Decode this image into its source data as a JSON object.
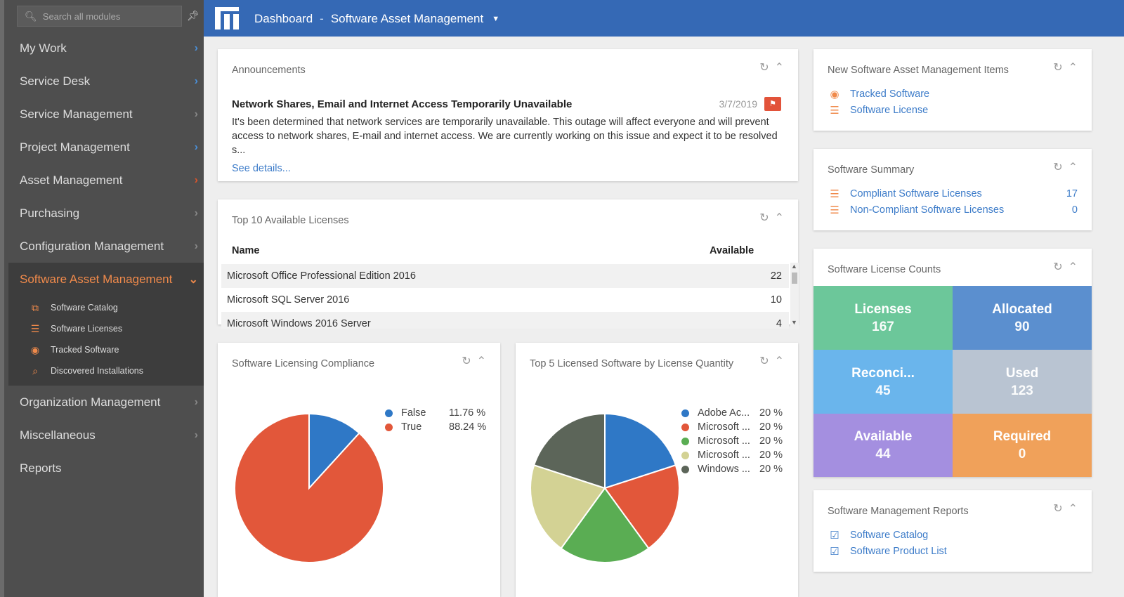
{
  "sidebar": {
    "search_placeholder": "Search all modules",
    "nav": [
      {
        "label": "My Work",
        "chev": "blue"
      },
      {
        "label": "Service Desk",
        "chev": "blue"
      },
      {
        "label": "Service Management",
        "chev": "grey"
      },
      {
        "label": "Project Management",
        "chev": "blue"
      },
      {
        "label": "Asset Management",
        "chev": "red"
      },
      {
        "label": "Purchasing",
        "chev": "grey"
      },
      {
        "label": "Configuration Management",
        "chev": "grey"
      }
    ],
    "active": {
      "label": "Software Asset Management"
    },
    "sub_items": [
      {
        "label": "Software Catalog",
        "icon": "catalog-icon"
      },
      {
        "label": "Software Licenses",
        "icon": "license-icon"
      },
      {
        "label": "Tracked Software",
        "icon": "eye-icon"
      },
      {
        "label": "Discovered Installations",
        "icon": "magnifier-icon"
      }
    ],
    "nav_bottom": [
      {
        "label": "Organization Management",
        "chev": "grey"
      },
      {
        "label": "Miscellaneous",
        "chev": "grey"
      },
      {
        "label": "Reports",
        "chev": "none"
      }
    ]
  },
  "topbar": {
    "dashboard": "Dashboard",
    "separator": "-",
    "module": "Software Asset Management",
    "color": "#3569b5"
  },
  "announcements": {
    "title": "Announcements",
    "headline": "Network Shares, Email and Internet Access Temporarily Unavailable",
    "date": "3/7/2019",
    "body": "It's been determined that network services are temporarily unavailable. This outage will affect everyone and will prevent access to network shares, E-mail and internet access. We are currently working on this issue and expect it to be resolved s...",
    "link": "See details..."
  },
  "top_licenses": {
    "title": "Top 10 Available Licenses",
    "col_name": "Name",
    "col_available": "Available",
    "rows": [
      {
        "name": "Microsoft Office Professional Edition 2016",
        "available": "22"
      },
      {
        "name": "Microsoft SQL Server 2016",
        "available": "10"
      },
      {
        "name": "Microsoft Windows 2016 Server",
        "available": "4"
      }
    ]
  },
  "compliance": {
    "title": "Software Licensing Compliance",
    "legend": [
      {
        "label": "False",
        "pct": "11.76 %",
        "color": "#2f78c6"
      },
      {
        "label": "True",
        "pct": "88.24 %",
        "color": "#e2573a"
      }
    ]
  },
  "top5": {
    "title": "Top 5 Licensed Software by License Quantity",
    "legend": [
      {
        "label": "Adobe Ac...",
        "pct": "20 %",
        "color": "#2f78c6"
      },
      {
        "label": "Microsoft ...",
        "pct": "20 %",
        "color": "#e2573a"
      },
      {
        "label": "Microsoft ...",
        "pct": "20 %",
        "color": "#5aad53"
      },
      {
        "label": "Microsoft ...",
        "pct": "20 %",
        "color": "#d3d294"
      },
      {
        "label": "Windows ...",
        "pct": "20 %",
        "color": "#5c6559"
      }
    ]
  },
  "new_items": {
    "title": "New Software Asset Management Items",
    "items": [
      {
        "label": "Tracked Software",
        "icon": "eye-icon"
      },
      {
        "label": "Software License",
        "icon": "license-icon"
      }
    ]
  },
  "summary": {
    "title": "Software Summary",
    "items": [
      {
        "label": "Compliant Software Licenses",
        "value": "17"
      },
      {
        "label": "Non-Compliant Software Licenses",
        "value": "0"
      }
    ]
  },
  "counts": {
    "title": "Software License Counts",
    "tiles": [
      {
        "label": "Licenses",
        "value": "167",
        "color": "#6cc79a"
      },
      {
        "label": "Allocated",
        "value": "90",
        "color": "#5b8fcf"
      },
      {
        "label": "Reconci...",
        "value": "45",
        "color": "#6ab5ec"
      },
      {
        "label": "Used",
        "value": "123",
        "color": "#b9c4d2"
      },
      {
        "label": "Available",
        "value": "44",
        "color": "#a48fe0"
      },
      {
        "label": "Required",
        "value": "0",
        "color": "#f0a15a"
      }
    ]
  },
  "reports": {
    "title": "Software Management Reports",
    "items": [
      {
        "label": "Software Catalog"
      },
      {
        "label": "Software Product List"
      }
    ]
  },
  "chart_data": [
    {
      "type": "pie",
      "title": "Software Licensing Compliance",
      "categories": [
        "False",
        "True"
      ],
      "values": [
        11.76,
        88.24
      ],
      "colors": [
        "#2f78c6",
        "#e2573a"
      ],
      "legend": "top-right"
    },
    {
      "type": "pie",
      "title": "Top 5 Licensed Software by License Quantity",
      "categories": [
        "Adobe Ac...",
        "Microsoft ...",
        "Microsoft ...",
        "Microsoft ...",
        "Windows ..."
      ],
      "values": [
        20,
        20,
        20,
        20,
        20
      ],
      "colors": [
        "#2f78c6",
        "#e2573a",
        "#5aad53",
        "#d3d294",
        "#5c6559"
      ],
      "legend": "top-right"
    }
  ]
}
